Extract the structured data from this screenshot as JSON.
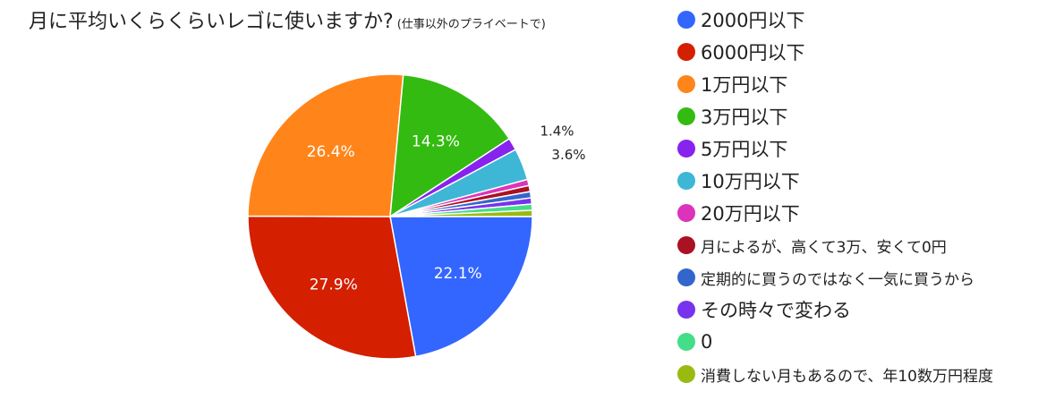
{
  "chart_data": {
    "type": "pie",
    "title": "月に平均いくらくらいレゴに使いますか?",
    "subtitle": "(仕事以外のプライベートで)",
    "slices": [
      {
        "label": "2000円以下",
        "value": 22.1,
        "color": "#3366ff",
        "display": "22.1%"
      },
      {
        "label": "6000円以下",
        "value": 27.9,
        "color": "#d41f00",
        "display": "27.9%"
      },
      {
        "label": "1万円以下",
        "value": 26.4,
        "color": "#ff851a",
        "display": "26.4%"
      },
      {
        "label": "3万円以下",
        "value": 14.3,
        "color": "#33bb11",
        "display": "14.3%"
      },
      {
        "label": "5万円以下",
        "value": 1.4,
        "color": "#8822ee",
        "display": "1.4%"
      },
      {
        "label": "10万円以下",
        "value": 3.6,
        "color": "#3eb6d6",
        "display": "3.6%"
      },
      {
        "label": "20万円以下",
        "value": 0.7,
        "color": "#dd33bb",
        "display": ""
      },
      {
        "label": "月によるが、高くて3万、安くて0円",
        "value": 0.7,
        "color": "#aa1122",
        "display": ""
      },
      {
        "label": "定期的に買うのではなく一気に買うから",
        "value": 0.7,
        "color": "#3366cc",
        "display": ""
      },
      {
        "label": "その時々で変わる",
        "value": 0.7,
        "color": "#7733ee",
        "display": ""
      },
      {
        "label": "0",
        "value": 0.7,
        "color": "#44dd88",
        "display": ""
      },
      {
        "label": "消費しない月もあるので、年10数万円程度",
        "value": 0.7,
        "color": "#99bb11",
        "display": ""
      }
    ]
  }
}
